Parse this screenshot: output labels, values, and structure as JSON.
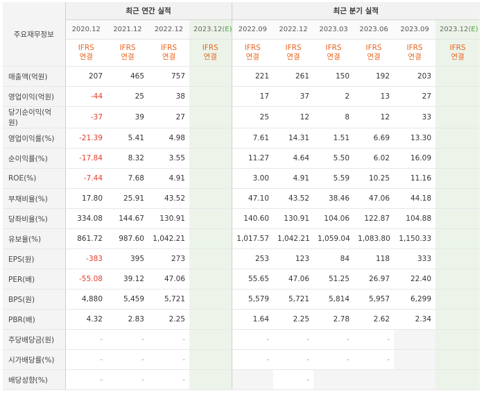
{
  "header": {
    "corner_label": "주요재무정보",
    "annual_group": "최근 연간 실적",
    "quarterly_group": "최근 분기 실적",
    "periods": [
      {
        "label": "2020.12",
        "est": "",
        "cur": false
      },
      {
        "label": "2021.12",
        "est": "",
        "cur": false
      },
      {
        "label": "2022.12",
        "est": "",
        "cur": false
      },
      {
        "label": "2023.12",
        "est": "(E)",
        "cur": true
      },
      {
        "label": "2022.09",
        "est": "",
        "cur": false
      },
      {
        "label": "2022.12",
        "est": "",
        "cur": false
      },
      {
        "label": "2023.03",
        "est": "",
        "cur": false
      },
      {
        "label": "2023.06",
        "est": "",
        "cur": false
      },
      {
        "label": "2023.09",
        "est": "",
        "cur": false
      },
      {
        "label": "2023.12",
        "est": "(E)",
        "cur": true
      }
    ],
    "ifrs_line1": "IFRS",
    "ifrs_line2": "연결"
  },
  "rows": [
    {
      "label": "매출액(억원)",
      "values": [
        "207",
        "465",
        "757",
        "",
        "221",
        "261",
        "150",
        "192",
        "203",
        ""
      ]
    },
    {
      "label": "영업이익(억원)",
      "values": [
        "-44",
        "25",
        "38",
        "",
        "17",
        "37",
        "2",
        "13",
        "27",
        ""
      ]
    },
    {
      "label": "당기순이익(억원)",
      "values": [
        "-37",
        "39",
        "27",
        "",
        "25",
        "12",
        "8",
        "12",
        "33",
        ""
      ]
    },
    {
      "label": "영업이익률(%)",
      "values": [
        "-21.39",
        "5.41",
        "4.98",
        "",
        "7.61",
        "14.31",
        "1.51",
        "6.69",
        "13.30",
        ""
      ]
    },
    {
      "label": "순이익률(%)",
      "values": [
        "-17.84",
        "8.32",
        "3.55",
        "",
        "11.27",
        "4.64",
        "5.50",
        "6.02",
        "16.09",
        ""
      ]
    },
    {
      "label": "ROE(%)",
      "values": [
        "-7.44",
        "7.68",
        "4.91",
        "",
        "3.00",
        "4.91",
        "5.59",
        "10.25",
        "11.16",
        ""
      ]
    },
    {
      "label": "부채비율(%)",
      "values": [
        "17.80",
        "25.91",
        "43.52",
        "",
        "47.10",
        "43.52",
        "38.46",
        "47.06",
        "44.18",
        ""
      ]
    },
    {
      "label": "당좌비율(%)",
      "values": [
        "334.08",
        "144.67",
        "130.91",
        "",
        "140.60",
        "130.91",
        "104.06",
        "122.87",
        "104.88",
        ""
      ]
    },
    {
      "label": "유보율(%)",
      "values": [
        "861.72",
        "987.60",
        "1,042.21",
        "",
        "1,017.57",
        "1,042.21",
        "1,059.04",
        "1,083.80",
        "1,150.33",
        ""
      ]
    },
    {
      "label": "EPS(원)",
      "values": [
        "-383",
        "395",
        "273",
        "",
        "253",
        "123",
        "84",
        "118",
        "333",
        ""
      ]
    },
    {
      "label": "PER(배)",
      "values": [
        "-55.08",
        "39.12",
        "47.06",
        "",
        "55.65",
        "47.06",
        "51.25",
        "26.97",
        "22.40",
        ""
      ]
    },
    {
      "label": "BPS(원)",
      "values": [
        "4,880",
        "5,459",
        "5,721",
        "",
        "5,579",
        "5,721",
        "5,814",
        "5,957",
        "6,299",
        ""
      ]
    },
    {
      "label": "PBR(배)",
      "values": [
        "4.32",
        "2.83",
        "2.25",
        "",
        "1.64",
        "2.25",
        "2.78",
        "2.62",
        "2.34",
        ""
      ]
    },
    {
      "label": "주당배당금(원)",
      "values": [
        "-",
        "-",
        "-",
        "",
        "-",
        "-",
        "-",
        "-",
        "",
        ""
      ]
    },
    {
      "label": "시가배당률(%)",
      "values": [
        "-",
        "-",
        "-",
        "",
        "-",
        "-",
        "-",
        "-",
        "",
        ""
      ]
    },
    {
      "label": "배당성향(%)",
      "values": [
        "-",
        "-",
        "-",
        "",
        "",
        "-",
        "",
        "",
        "",
        ""
      ]
    }
  ],
  "colors": {
    "negative": "#e23b2c",
    "ifrs": "#e8641e",
    "estimate": "#4aa040",
    "estimate_bg": "#ecf4ea",
    "header_bg": "#f4f4f4"
  }
}
